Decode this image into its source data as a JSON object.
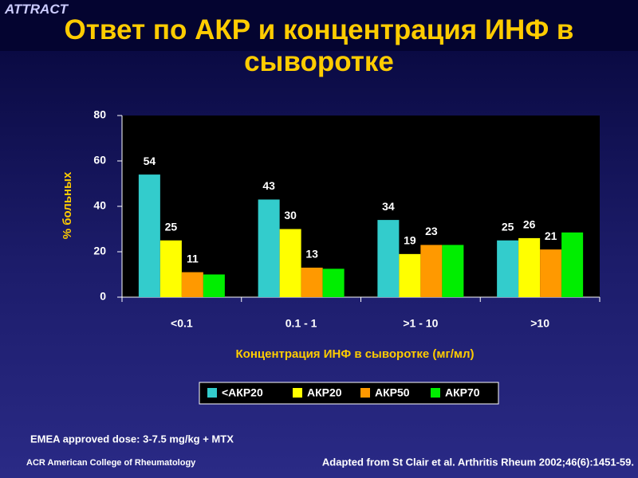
{
  "header": {
    "tag": "ATTRACT",
    "title": "Ответ по АКР и концентрация ИНФ в сыворотке"
  },
  "chart_data": {
    "type": "bar",
    "categories": [
      "<0.1",
      "0.1 - 1",
      ">1 - 10",
      ">10"
    ],
    "series": [
      {
        "name": "<АКР20",
        "color": "#33cccc",
        "values": [
          54,
          43,
          34,
          25
        ],
        "data_labels": true
      },
      {
        "name": "АКР20",
        "color": "#ffff00",
        "values": [
          25,
          30,
          19,
          26
        ],
        "data_labels": true
      },
      {
        "name": "АКР50",
        "color": "#ff9900",
        "values": [
          11,
          13,
          23,
          21
        ],
        "data_labels": true
      },
      {
        "name": "АКР70",
        "color": "#00ee00",
        "values": [
          10,
          12.5,
          23,
          28.5
        ],
        "data_labels": false
      }
    ],
    "ylim": [
      0,
      80
    ],
    "yticks": [
      0,
      20,
      40,
      60,
      80
    ],
    "ylabel": "% больных",
    "xlabel": "Концентрация ИНФ в сыворотке (мг/мл)",
    "grid": false,
    "legend": "bottom"
  },
  "footer": {
    "dose": "EMEA approved dose: 3-7.5 mg/kg + MTX",
    "org": "ACR American College of Rheumatology",
    "source": "Adapted from St Clair et al. Arthritis Rheum 2002;46(6):1451-59."
  }
}
